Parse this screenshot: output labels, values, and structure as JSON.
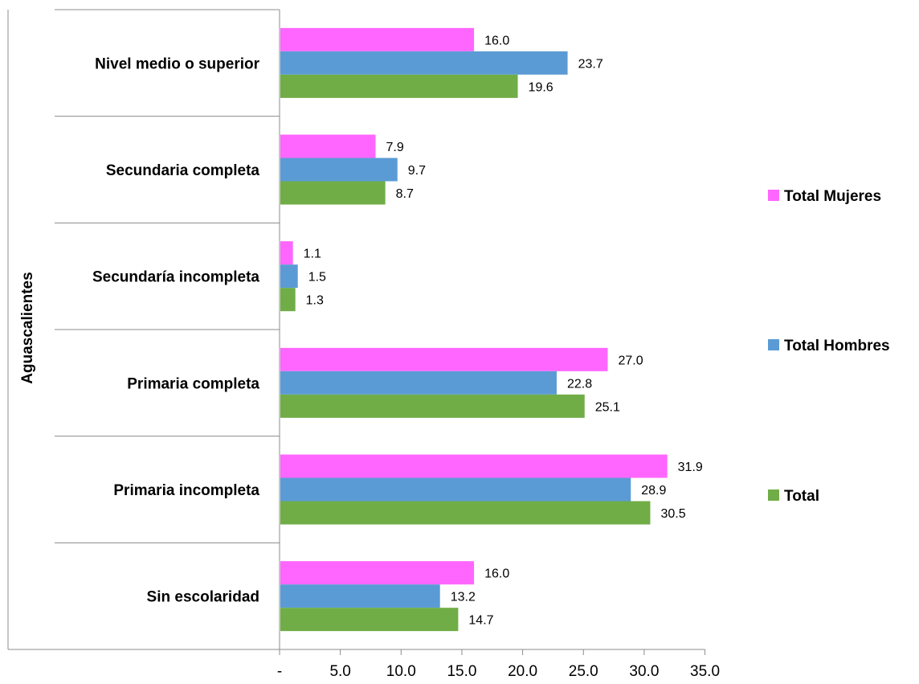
{
  "chart_data": {
    "type": "bar",
    "orientation": "horizontal",
    "group_label": "Aguascalientes",
    "categories": [
      "Sin escolaridad",
      "Primaria incompleta",
      "Primaria completa",
      "Secundaría incompleta",
      "Secundaria completa",
      "Nivel medio o superior"
    ],
    "series": [
      {
        "name": "Total Mujeres",
        "color": "#ff66ff",
        "values": [
          16.0,
          31.9,
          27.0,
          1.1,
          7.9,
          16.0
        ],
        "labels": [
          "16.0",
          "31.9",
          "27.0",
          "1.1",
          "7.9",
          "16.0"
        ]
      },
      {
        "name": "Total Hombres",
        "color": "#5b9bd5",
        "values": [
          13.2,
          28.9,
          22.8,
          1.5,
          9.7,
          23.7
        ],
        "labels": [
          "13.2",
          "28.9",
          "22.8",
          "1.5",
          "9.7",
          "23.7"
        ]
      },
      {
        "name": "Total",
        "color": "#70ad47",
        "values": [
          14.7,
          30.5,
          25.1,
          1.3,
          8.7,
          19.6
        ],
        "labels": [
          "14.7",
          "30.5",
          "25.1",
          "1.3",
          "8.7",
          "19.6"
        ]
      }
    ],
    "xlim": [
      0,
      35
    ],
    "x_ticks": [
      0,
      5,
      10,
      15,
      20,
      25,
      30,
      35
    ],
    "x_tick_labels": [
      "-",
      "5.0",
      "10.0",
      "15.0",
      "20.0",
      "25.0",
      "30.0",
      "35.0"
    ],
    "grid": false,
    "legend_position": "right"
  }
}
